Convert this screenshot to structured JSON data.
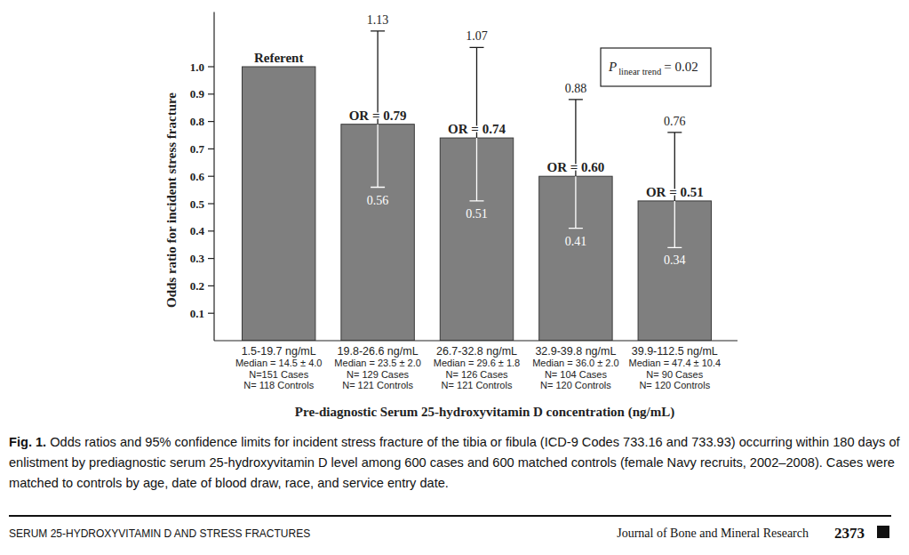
{
  "chart_data": {
    "type": "bar",
    "categories": [
      "1.5-19.7 ng/mL",
      "19.8-26.6 ng/mL",
      "26.7-32.8 ng/mL",
      "32.9-39.8 ng/mL",
      "39.9-112.5 ng/mL"
    ],
    "category_details": [
      [
        "Median = 14.5 ± 4.0",
        "N=151 Cases",
        "N= 118 Controls"
      ],
      [
        "Median = 23.5 ± 2.0",
        "N= 129 Cases",
        "N= 121 Controls"
      ],
      [
        "Median = 29.6 ± 1.8",
        "N= 126 Cases",
        "N= 121 Controls"
      ],
      [
        "Median = 36.0 ± 2.0",
        "N= 104 Cases",
        "N= 120 Controls"
      ],
      [
        "Median = 47.4 ± 10.4",
        "N= 90 Cases",
        "N= 120 Controls"
      ]
    ],
    "values": [
      1,
      0.79,
      0.74,
      0.6,
      0.51
    ],
    "value_labels": [
      null,
      "OR = 0.79",
      "OR = 0.74",
      "OR = 0.60",
      "OR = 0.51"
    ],
    "reference_label": "Referent",
    "ci_lower": [
      null,
      0.56,
      0.51,
      0.41,
      0.34
    ],
    "ci_upper": [
      null,
      1.13,
      1.07,
      0.88,
      0.76
    ],
    "color": "#7f7f7f",
    "data_labels": true,
    "grid": false,
    "ylim": [
      0,
      1.2
    ],
    "yticks": [
      0.1,
      0.2,
      0.3,
      0.4,
      0.5,
      0.6,
      0.7,
      0.8,
      0.9,
      {
        "value": 1,
        "label": "1.0"
      }
    ],
    "y_label": "Odds ratio for incident stress fracture",
    "x_label": "Pre-diagnostic Serum 25-hydroxyvitamin D concentration (ng/mL)",
    "trend_annotation": {
      "symbol": "P",
      "subscript": "linear trend",
      "text": "= 0.02"
    }
  },
  "caption": {
    "label": "Fig. 1.",
    "text": "Odds ratios and 95% confidence limits for incident stress fracture of the tibia or fibula (ICD-9 Codes 733.16 and 733.93) occurring within 180 days of enlistment by prediagnostic serum 25-hydroxyvitamin D level among 600 cases and 600 matched controls (female Navy recruits, 2002–2008). Cases were matched to controls by age, date of blood draw, race, and service entry date."
  },
  "footer": {
    "running_title": "SERUM 25-HYDROXYVITAMIN D AND STRESS FRACTURES",
    "journal": "Journal of Bone and Mineral Research",
    "page": "2373"
  }
}
